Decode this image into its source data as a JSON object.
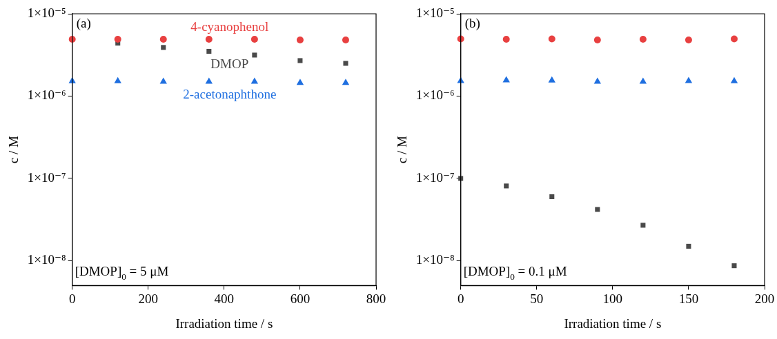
{
  "chart_data": [
    {
      "type": "scatter",
      "xlabel": "Irradiation time / s",
      "ylabel": "c / M",
      "log": "y",
      "grid": false,
      "legend": false,
      "x": [
        0,
        120,
        240,
        360,
        480,
        600,
        720
      ],
      "xlim": [
        0,
        800
      ],
      "xticks": [
        0,
        200,
        400,
        600,
        800
      ],
      "ylim": [
        5e-09,
        1e-05
      ],
      "yticks": [
        {
          "value": 1e-08,
          "label": "1×10⁻⁸"
        },
        {
          "value": 1e-07,
          "label": "1×10⁻⁷"
        },
        {
          "value": 1e-06,
          "label": "1×10⁻⁶"
        },
        {
          "value": 1e-05,
          "label": "1×10⁻⁵"
        }
      ],
      "annotations": [
        "(a)",
        "[DMOP]$_{0}$ = 5 μM"
      ],
      "series": [
        {
          "name": "4-cyanophenol",
          "color": "#e84040",
          "marker": "circle",
          "values": [
            4.9e-06,
            4.9e-06,
            4.9e-06,
            4.9e-06,
            4.9e-06,
            4.8e-06,
            4.8e-06
          ]
        },
        {
          "name": "DMOP",
          "color": "#4a4a4a",
          "marker": "square",
          "values": [
            null,
            4.4e-06,
            3.9e-06,
            3.5e-06,
            3.15e-06,
            2.7e-06,
            2.5e-06
          ]
        },
        {
          "name": "2-acetonaphthone",
          "color": "#1f6fe0",
          "marker": "triangle",
          "values": [
            1.52e-06,
            1.52e-06,
            1.5e-06,
            1.5e-06,
            1.5e-06,
            1.45e-06,
            1.45e-06
          ]
        }
      ]
    },
    {
      "type": "scatter",
      "xlabel": "Irradiation time / s",
      "ylabel": "c / M",
      "log": "y",
      "grid": false,
      "legend": false,
      "x": [
        0,
        30,
        60,
        90,
        120,
        150,
        180
      ],
      "xlim": [
        0,
        200
      ],
      "xticks": [
        0,
        50,
        100,
        150,
        200
      ],
      "ylim": [
        5e-09,
        1e-05
      ],
      "yticks": [
        {
          "value": 1e-08,
          "label": "1×10⁻⁸"
        },
        {
          "value": 1e-07,
          "label": "1×10⁻⁷"
        },
        {
          "value": 1e-06,
          "label": "1×10⁻⁶"
        },
        {
          "value": 1e-05,
          "label": "1×10⁻⁵"
        }
      ],
      "annotations": [
        "(b)",
        "[DMOP]$_{0}$ = 0.1 μM"
      ],
      "series": [
        {
          "color": "#e84040",
          "marker": "circle",
          "values": [
            4.95e-06,
            4.9e-06,
            4.95e-06,
            4.8e-06,
            4.9e-06,
            4.8e-06,
            4.95e-06
          ]
        },
        {
          "color": "#4a4a4a",
          "marker": "square",
          "values": [
            1e-07,
            8.1e-08,
            6e-08,
            4.2e-08,
            2.7e-08,
            1.5e-08,
            8.7e-09
          ]
        },
        {
          "color": "#1f6fe0",
          "marker": "triangle",
          "values": [
            1.53e-06,
            1.56e-06,
            1.55e-06,
            1.5e-06,
            1.5e-06,
            1.53e-06,
            1.52e-06
          ]
        }
      ]
    }
  ]
}
